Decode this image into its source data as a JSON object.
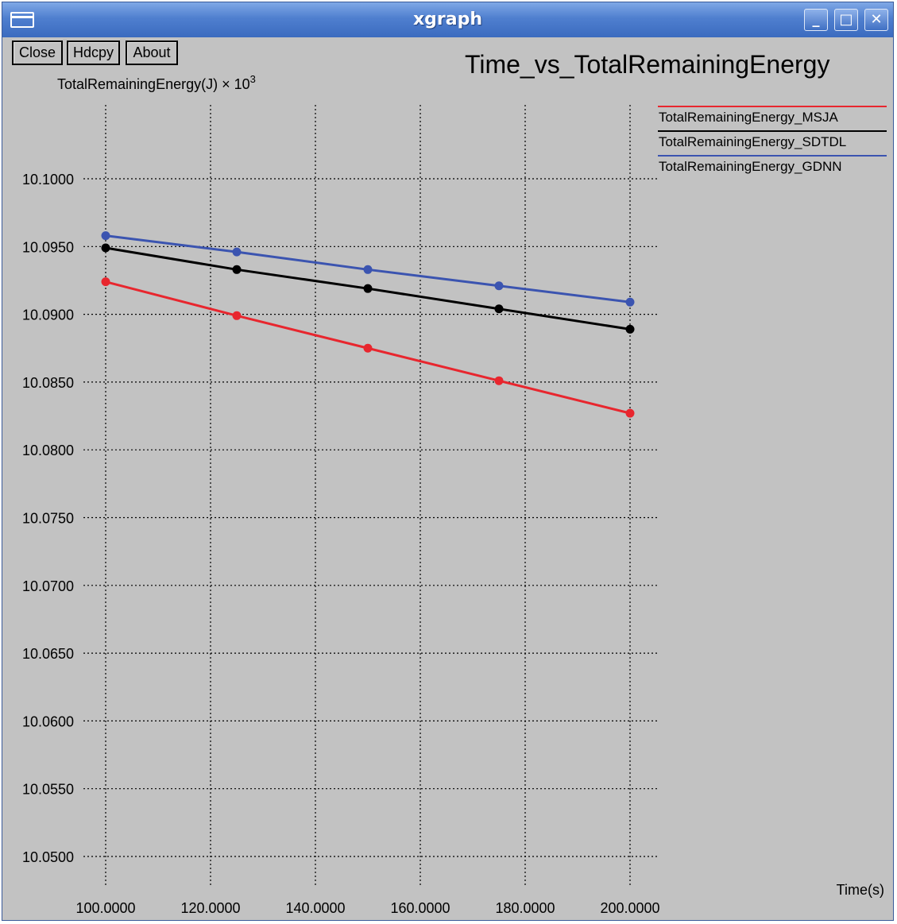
{
  "window": {
    "title": "xgraph"
  },
  "titlebar_buttons": {
    "minimize_icon": "_",
    "maximize_icon": "□",
    "close_icon": "✕"
  },
  "toolbar": {
    "close_label": "Close",
    "hdcpy_label": "Hdcpy",
    "about_label": "About"
  },
  "colors": {
    "msja": "#e8262e",
    "sdtdl": "#000000",
    "gdnn": "#3b54b0"
  },
  "chart_data": {
    "type": "line",
    "title": "Time_vs_TotalRemainingEnergy",
    "ylabel_main": "TotalRemainingEnergy(J)",
    "ylabel_unit": " × 10",
    "ylabel_exp": "3",
    "xlabel": "Time(s)",
    "xlim": [
      100,
      200
    ],
    "ylim": [
      10.05,
      10.1
    ],
    "grid": true,
    "legend_position": "top-right",
    "x_ticks": [
      "100.0000",
      "120.0000",
      "140.0000",
      "160.0000",
      "180.0000",
      "200.0000"
    ],
    "y_ticks": [
      "10.0500",
      "10.0550",
      "10.0600",
      "10.0650",
      "10.0700",
      "10.0750",
      "10.0800",
      "10.0850",
      "10.0900",
      "10.0950",
      "10.1000"
    ],
    "x": [
      100,
      125,
      150,
      175,
      200
    ],
    "series": [
      {
        "name": "TotalRemainingEnergy_MSJA",
        "color": "#e8262e",
        "values": [
          10.0924,
          10.0899,
          10.0875,
          10.0851,
          10.0827
        ]
      },
      {
        "name": "TotalRemainingEnergy_SDTDL",
        "color": "#000000",
        "values": [
          10.0949,
          10.0933,
          10.0919,
          10.0904,
          10.0889
        ]
      },
      {
        "name": "TotalRemainingEnergy_GDNN",
        "color": "#3b54b0",
        "values": [
          10.0958,
          10.0946,
          10.0933,
          10.0921,
          10.0909
        ]
      }
    ]
  }
}
